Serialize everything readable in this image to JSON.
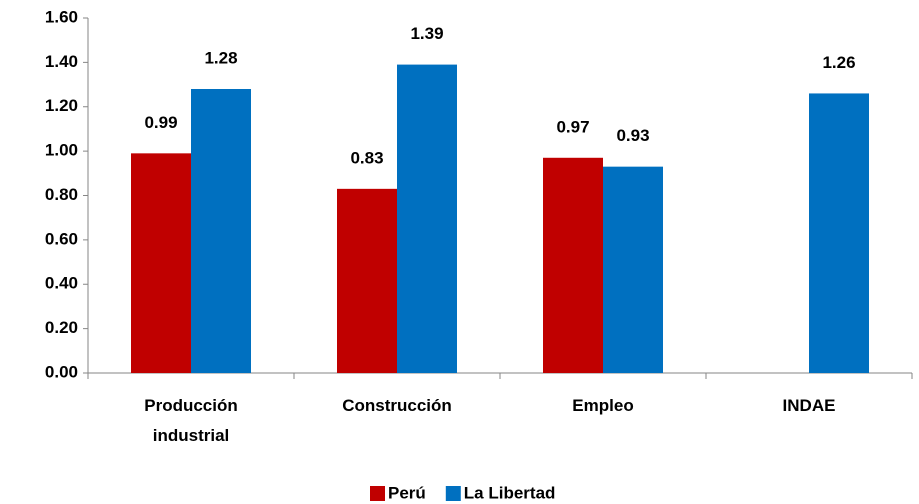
{
  "chart_data": {
    "type": "bar",
    "categories": [
      "Producción industrial",
      "Construcción",
      "Empleo",
      "INDAE"
    ],
    "series": [
      {
        "name": "Perú",
        "color": "#c00000",
        "values": [
          0.99,
          0.83,
          0.97,
          null
        ]
      },
      {
        "name": "La Libertad",
        "color": "#0070c0",
        "values": [
          1.28,
          1.39,
          0.93,
          1.26
        ]
      }
    ],
    "ylim": [
      0,
      1.6
    ],
    "yticks": [
      {
        "value": 0,
        "label": "0.00"
      },
      {
        "value": 0.2,
        "label": "0.20"
      },
      {
        "value": 0.4,
        "label": "0.40"
      },
      {
        "value": 0.6,
        "label": "0.60"
      },
      {
        "value": 0.8,
        "label": "0.80"
      },
      {
        "value": 1.0,
        "label": "1.00"
      },
      {
        "value": 1.2,
        "label": "1.20"
      },
      {
        "value": 1.4,
        "label": "1.40"
      },
      {
        "value": 1.6,
        "label": "1.60"
      }
    ],
    "grid": false,
    "legend": "bottom"
  }
}
